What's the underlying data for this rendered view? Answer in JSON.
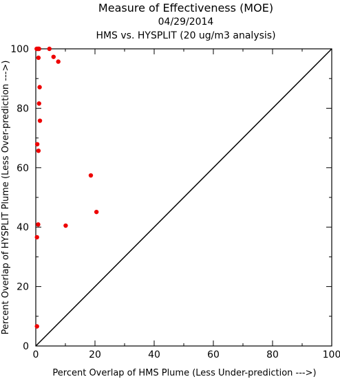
{
  "chart_data": {
    "type": "scatter",
    "title": "Measure of Effectiveness (MOE)",
    "subtitle_date": "04/29/2014",
    "subtitle_analysis": "HMS vs. HYSPLIT  (20 ug/m3 analysis)",
    "xlabel": "Percent Overlap of HMS Plume (Less Under-prediction --->)",
    "ylabel": "Percent Overlap of HYSPLIT Plume (Less Over-prediction --->)",
    "xlim": [
      0,
      100
    ],
    "ylim": [
      0,
      100
    ],
    "xticks": [
      "0",
      "20",
      "40",
      "60",
      "80",
      "100"
    ],
    "yticks": [
      "0",
      "20",
      "40",
      "60",
      "80",
      "100"
    ],
    "grid": false,
    "reference_line": "diagonal y = x",
    "colors": {
      "points": "#ee0000",
      "axes": "#000000",
      "diagonal": "#000000"
    },
    "points": [
      {
        "x": 0.3,
        "y": 100
      },
      {
        "x": 0.6,
        "y": 100
      },
      {
        "x": 0.9,
        "y": 100
      },
      {
        "x": 1.1,
        "y": 100
      },
      {
        "x": 4.6,
        "y": 100
      },
      {
        "x": 0.9,
        "y": 97.0
      },
      {
        "x": 6.0,
        "y": 97.3
      },
      {
        "x": 7.6,
        "y": 95.7
      },
      {
        "x": 1.3,
        "y": 87.1
      },
      {
        "x": 1.1,
        "y": 81.6
      },
      {
        "x": 1.4,
        "y": 75.8
      },
      {
        "x": 0.5,
        "y": 67.9
      },
      {
        "x": 0.9,
        "y": 65.7
      },
      {
        "x": 18.6,
        "y": 57.4
      },
      {
        "x": 20.5,
        "y": 45.1
      },
      {
        "x": 0.8,
        "y": 40.9
      },
      {
        "x": 10.1,
        "y": 40.5
      },
      {
        "x": 0.4,
        "y": 36.6
      },
      {
        "x": 0.4,
        "y": 6.6
      }
    ]
  }
}
